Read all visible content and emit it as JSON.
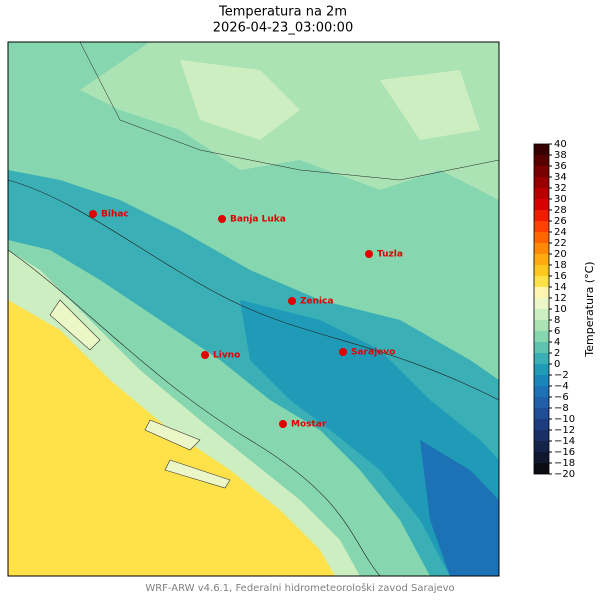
{
  "title": "Temperatura na 2m",
  "subtitle": "2026-04-23_03:00:00",
  "cities": [
    {
      "name": "Bihac"
    },
    {
      "name": "Banja Luka"
    },
    {
      "name": "Tuzla"
    },
    {
      "name": "Zenica"
    },
    {
      "name": "Livno"
    },
    {
      "name": "Sarajevo"
    },
    {
      "name": "Mostar"
    }
  ],
  "colorbar": {
    "label": "Temperatura (°C)",
    "ticks": [
      {
        "value": -20,
        "label": "−20"
      },
      {
        "value": -18,
        "label": "−18"
      },
      {
        "value": -16,
        "label": "−16"
      },
      {
        "value": -14,
        "label": "−14"
      },
      {
        "value": -12,
        "label": "−12"
      },
      {
        "value": -10,
        "label": "−10"
      },
      {
        "value": -8,
        "label": "−8"
      },
      {
        "value": -6,
        "label": "−6"
      },
      {
        "value": -4,
        "label": "−4"
      },
      {
        "value": -2,
        "label": "−2"
      },
      0,
      2,
      4,
      6,
      8,
      10,
      12,
      14,
      16,
      18,
      20,
      22,
      24,
      26,
      28,
      30,
      32,
      34,
      36,
      38,
      40
    ],
    "colors": [
      "#0b0b14",
      "#101830",
      "#15234a",
      "#1a2f66",
      "#1d3d80",
      "#1f4d96",
      "#1f5fa8",
      "#1c72b4",
      "#1886b8",
      "#1f9bb8",
      "#3aafb5",
      "#5ec4b0",
      "#86d6b0",
      "#abe3b5",
      "#cdeec0",
      "#ecf7c8",
      "#fff5b0",
      "#ffe14a",
      "#ffc820",
      "#ffaa10",
      "#ff8a08",
      "#ff6600",
      "#ff4000",
      "#f01c00",
      "#d80000",
      "#b80000",
      "#980000",
      "#780000",
      "#580000",
      "#380000"
    ]
  },
  "footer": "WRF-ARW v4.6.1, Federalni hidrometeorološki zavod Sarajevo"
}
